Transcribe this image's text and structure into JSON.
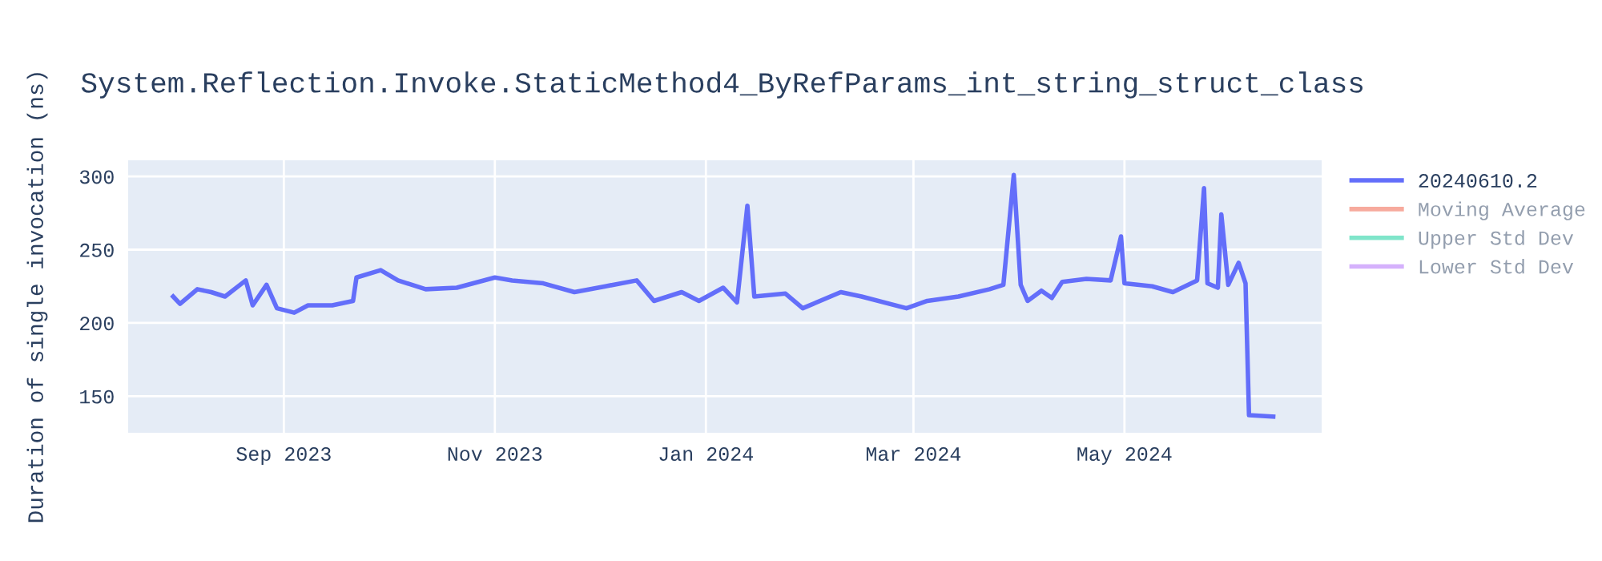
{
  "chart_data": {
    "type": "line",
    "title": "System.Reflection.Invoke.StaticMethod4_ByRefParams_int_string_struct_class",
    "ylabel": "Duration of single invocation (ns)",
    "x": [
      "2023-07-31",
      "2023-08-02",
      "2023-08-07",
      "2023-08-11",
      "2023-08-15",
      "2023-08-21",
      "2023-08-23",
      "2023-08-27",
      "2023-08-30",
      "2023-09-04",
      "2023-09-08",
      "2023-09-15",
      "2023-09-21",
      "2023-09-22",
      "2023-09-29",
      "2023-10-04",
      "2023-10-12",
      "2023-10-21",
      "2023-11-01",
      "2023-11-06",
      "2023-11-15",
      "2023-11-24",
      "2023-12-03",
      "2023-12-12",
      "2023-12-17",
      "2023-12-25",
      "2023-12-30",
      "2024-01-06",
      "2024-01-10",
      "2024-01-13",
      "2024-01-15",
      "2024-01-24",
      "2024-01-29",
      "2024-02-09",
      "2024-02-15",
      "2024-02-28",
      "2024-03-05",
      "2024-03-14",
      "2024-03-23",
      "2024-03-27",
      "2024-03-30",
      "2024-04-01",
      "2024-04-03",
      "2024-04-07",
      "2024-04-10",
      "2024-04-13",
      "2024-04-20",
      "2024-04-27",
      "2024-04-30",
      "2024-05-01",
      "2024-05-09",
      "2024-05-15",
      "2024-05-22",
      "2024-05-24",
      "2024-05-25",
      "2024-05-28",
      "2024-05-29",
      "2024-05-31",
      "2024-06-03",
      "2024-06-05",
      "2024-06-06",
      "2024-06-13"
    ],
    "series": [
      {
        "name": "20240610.2",
        "color": "#636efa",
        "values": [
          218,
          213,
          223,
          221,
          218,
          229,
          212,
          226,
          210,
          207,
          212,
          212,
          215,
          231,
          236,
          229,
          223,
          224,
          231,
          229,
          227,
          221,
          225,
          229,
          215,
          221,
          215,
          224,
          214,
          280,
          218,
          220,
          210,
          221,
          218,
          210,
          215,
          218,
          223,
          226,
          301,
          226,
          215,
          222,
          217,
          228,
          230,
          229,
          259,
          227,
          225,
          221,
          229,
          292,
          227,
          224,
          274,
          226,
          241,
          227,
          137,
          136
        ]
      },
      {
        "name": "Moving Average",
        "color": "#ef553b",
        "values": [
          null,
          null,
          null,
          null,
          null,
          null,
          null,
          null,
          null,
          null,
          null,
          null,
          null,
          null,
          null,
          null,
          null,
          null,
          null,
          null,
          null,
          null,
          null,
          null,
          null,
          null,
          null,
          null,
          null,
          null,
          null,
          null,
          null,
          null,
          null,
          null,
          null,
          null,
          null,
          null,
          null,
          null,
          null,
          null,
          null,
          null,
          null,
          null,
          null,
          null,
          null,
          null,
          null,
          null,
          null,
          null,
          null,
          null,
          null,
          null,
          null,
          null
        ]
      },
      {
        "name": "Upper Std Dev",
        "color": "#00cc96",
        "values": [
          null,
          null,
          null,
          null,
          null,
          null,
          null,
          null,
          null,
          null,
          null,
          null,
          null,
          null,
          null,
          null,
          null,
          null,
          null,
          null,
          null,
          null,
          null,
          null,
          null,
          null,
          null,
          null,
          null,
          null,
          null,
          null,
          null,
          null,
          null,
          null,
          null,
          null,
          null,
          null,
          null,
          null,
          null,
          null,
          null,
          null,
          null,
          null,
          null,
          null,
          null,
          null,
          null,
          null,
          null,
          null,
          null,
          null,
          null,
          null,
          null,
          null
        ]
      },
      {
        "name": "Lower Std Dev",
        "color": "#ab63fa",
        "values": [
          null,
          null,
          null,
          null,
          null,
          null,
          null,
          null,
          null,
          null,
          null,
          null,
          null,
          null,
          null,
          null,
          null,
          null,
          null,
          null,
          null,
          null,
          null,
          null,
          null,
          null,
          null,
          null,
          null,
          null,
          null,
          null,
          null,
          null,
          null,
          null,
          null,
          null,
          null,
          null,
          null,
          null,
          null,
          null,
          null,
          null,
          null,
          null,
          null,
          null,
          null,
          null,
          null,
          null,
          null,
          null,
          null,
          null,
          null,
          null,
          null,
          null
        ]
      }
    ],
    "xlim": [
      "2023-07-18",
      "2024-06-27"
    ],
    "xticks": [
      {
        "value": "2023-09-01",
        "label": "Sep 2023"
      },
      {
        "value": "2023-11-01",
        "label": "Nov 2023"
      },
      {
        "value": "2024-01-01",
        "label": "Jan 2024"
      },
      {
        "value": "2024-03-01",
        "label": "Mar 2024"
      },
      {
        "value": "2024-05-01",
        "label": "May 2024"
      }
    ],
    "ylim": [
      125,
      311
    ],
    "yticks": [
      150,
      200,
      250,
      300
    ],
    "grid": true,
    "legend": "right"
  }
}
